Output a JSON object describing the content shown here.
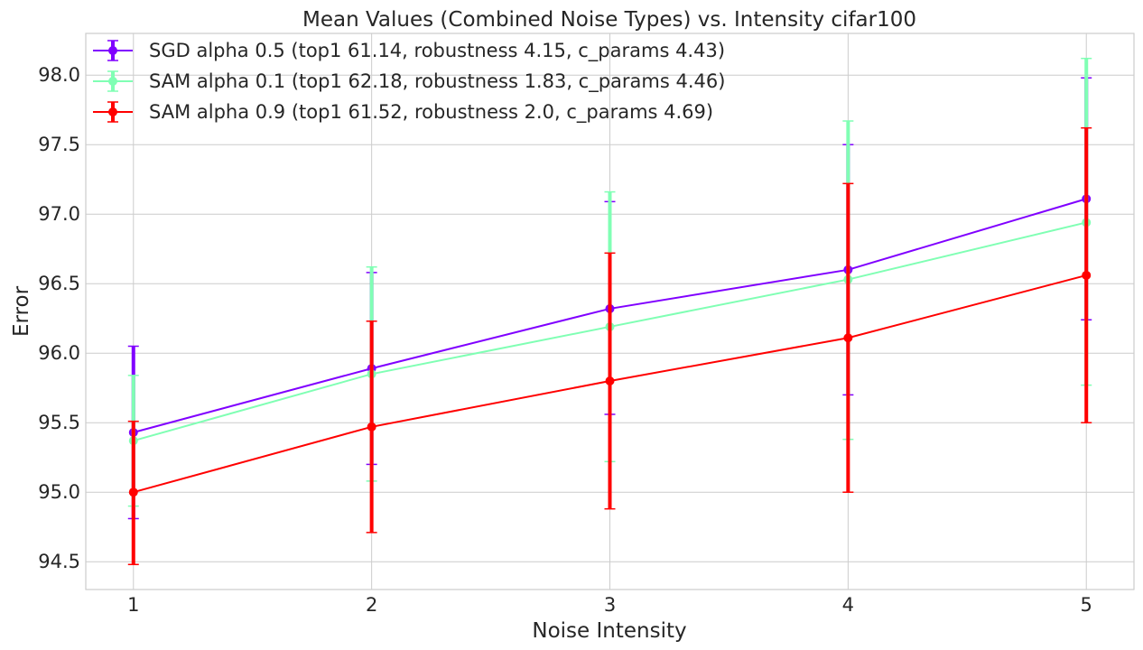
{
  "chart_data": {
    "type": "line",
    "title": "Mean Values (Combined Noise Types) vs. Intensity cifar100",
    "xlabel": "Noise Intensity",
    "ylabel": "Error",
    "x": [
      1,
      2,
      3,
      4,
      5
    ],
    "x_tick_labels": [
      "1",
      "2",
      "3",
      "4",
      "5"
    ],
    "xlim": [
      0.8,
      5.2
    ],
    "ylim": [
      94.3,
      98.3
    ],
    "y_ticks": [
      94.5,
      95.0,
      95.5,
      96.0,
      96.5,
      97.0,
      97.5,
      98.0
    ],
    "y_tick_labels": [
      "94.5",
      "95.0",
      "95.5",
      "96.0",
      "96.5",
      "97.0",
      "97.5",
      "98.0"
    ],
    "grid": true,
    "legend_position": "top-left",
    "error_bars": true,
    "series": [
      {
        "name": "SGD alpha 0.5 (top1 61.14, robustness 4.15, c_params 4.43)",
        "color": "#8000ff",
        "values": [
          95.43,
          95.89,
          96.32,
          96.6,
          97.11
        ],
        "err_low": [
          94.81,
          95.2,
          95.56,
          95.7,
          96.24
        ],
        "err_high": [
          96.05,
          96.58,
          97.09,
          97.5,
          97.98
        ]
      },
      {
        "name": "SAM alpha 0.1 (top1 62.18, robustness 1.83, c_params 4.46)",
        "color": "#80ffb4",
        "values": [
          95.37,
          95.85,
          96.19,
          96.53,
          96.94
        ],
        "err_low": [
          94.9,
          95.08,
          95.22,
          95.38,
          95.77
        ],
        "err_high": [
          95.84,
          96.62,
          97.16,
          97.67,
          98.12
        ]
      },
      {
        "name": "SAM alpha 0.9 (top1 61.52, robustness 2.0, c_params 4.69)",
        "color": "#ff0000",
        "values": [
          95.0,
          95.47,
          95.8,
          96.11,
          96.56
        ],
        "err_low": [
          94.48,
          94.71,
          94.88,
          95.0,
          95.5
        ],
        "err_high": [
          95.51,
          96.23,
          96.72,
          97.22,
          97.62
        ]
      }
    ]
  }
}
